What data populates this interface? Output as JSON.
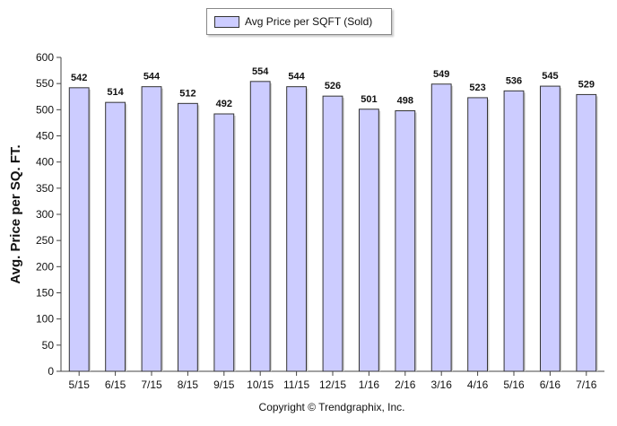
{
  "chart_data": {
    "type": "bar",
    "title": "",
    "xlabel": "",
    "ylabel": "Avg. Price per SQ. FT.",
    "ylim": [
      0,
      600
    ],
    "yticks": [
      0,
      50,
      100,
      150,
      200,
      250,
      300,
      350,
      400,
      450,
      500,
      550,
      600
    ],
    "categories": [
      "5/15",
      "6/15",
      "7/15",
      "8/15",
      "9/15",
      "10/15",
      "11/15",
      "12/15",
      "1/16",
      "2/16",
      "3/16",
      "4/16",
      "5/16",
      "6/16",
      "7/16"
    ],
    "series": [
      {
        "name": "Avg Price per SQFT (Sold)",
        "values": [
          542,
          514,
          544,
          512,
          492,
          554,
          544,
          526,
          501,
          498,
          549,
          523,
          536,
          545,
          529
        ],
        "color": "#ccccff"
      }
    ],
    "legend": "top-center",
    "grid": false,
    "data_labels": true
  },
  "footer": {
    "copyright": "Copyright © Trendgraphix, Inc."
  }
}
